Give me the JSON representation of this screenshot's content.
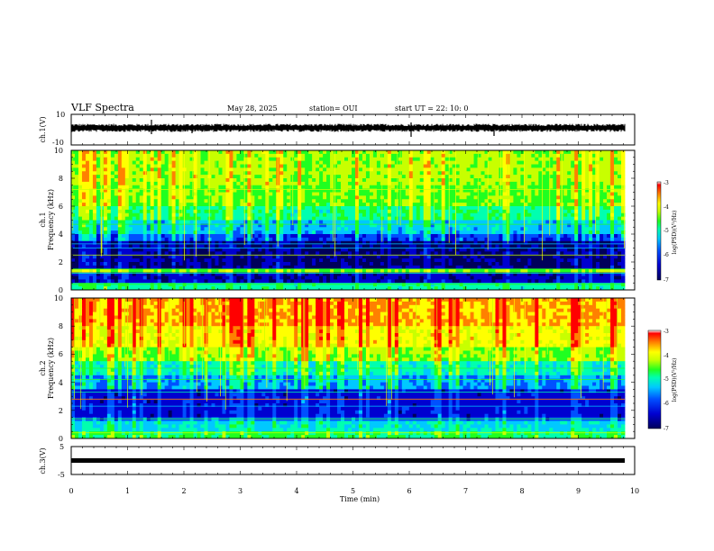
{
  "header": {
    "title": "VLF Spectra",
    "date": "May 28, 2025",
    "station": "station= OUI",
    "start": "start UT = 22: 10: 0"
  },
  "chart_data": [
    {
      "type": "line",
      "panel": "ch1-waveform",
      "ylabel": "ch.1(V)",
      "ylim": [
        -10,
        10
      ],
      "yticks": [
        "10",
        "-10"
      ],
      "mean_level": 0
    },
    {
      "type": "heatmap",
      "panel": "ch1-spectrogram",
      "ylabel": "ch.1",
      "ylabel2": "Frequency (kHz)",
      "ylim": [
        0,
        10
      ],
      "yticks": [
        "0",
        "2",
        "4",
        "6",
        "8",
        "10"
      ],
      "colorbar": {
        "label": "log(PSD)(V²/Hz)",
        "ticks": [
          "-3",
          "-4",
          "-5",
          "-6",
          "-7"
        ],
        "range": [
          -7,
          -3
        ]
      }
    },
    {
      "type": "heatmap",
      "panel": "ch2-spectrogram",
      "ylabel": "ch.2",
      "ylabel2": "Frequency (kHz)",
      "ylim": [
        0,
        10
      ],
      "yticks": [
        "0",
        "2",
        "4",
        "6",
        "8",
        "10"
      ],
      "colorbar": {
        "label": "log(PSD)(V²/Hz)",
        "ticks": [
          "-3",
          "-4",
          "-5",
          "-6",
          "-7"
        ],
        "range": [
          -7,
          -3
        ]
      }
    },
    {
      "type": "line",
      "panel": "ch3-waveform",
      "ylabel": "ch.3(V)",
      "ylim": [
        -5,
        5
      ],
      "yticks": [
        "5",
        "-5"
      ],
      "mean_level": 0
    }
  ],
  "xaxis": {
    "label": "Time (min)",
    "xlim": [
      0,
      10
    ],
    "ticks": [
      "0",
      "1",
      "2",
      "3",
      "4",
      "5",
      "6",
      "7",
      "8",
      "9",
      "10"
    ]
  },
  "colors": {
    "cmap": [
      "#00005a",
      "#0000d0",
      "#0050ff",
      "#00c8ff",
      "#00ffb0",
      "#20ff20",
      "#c8ff00",
      "#ffff00",
      "#ff8000",
      "#ff0000"
    ]
  }
}
